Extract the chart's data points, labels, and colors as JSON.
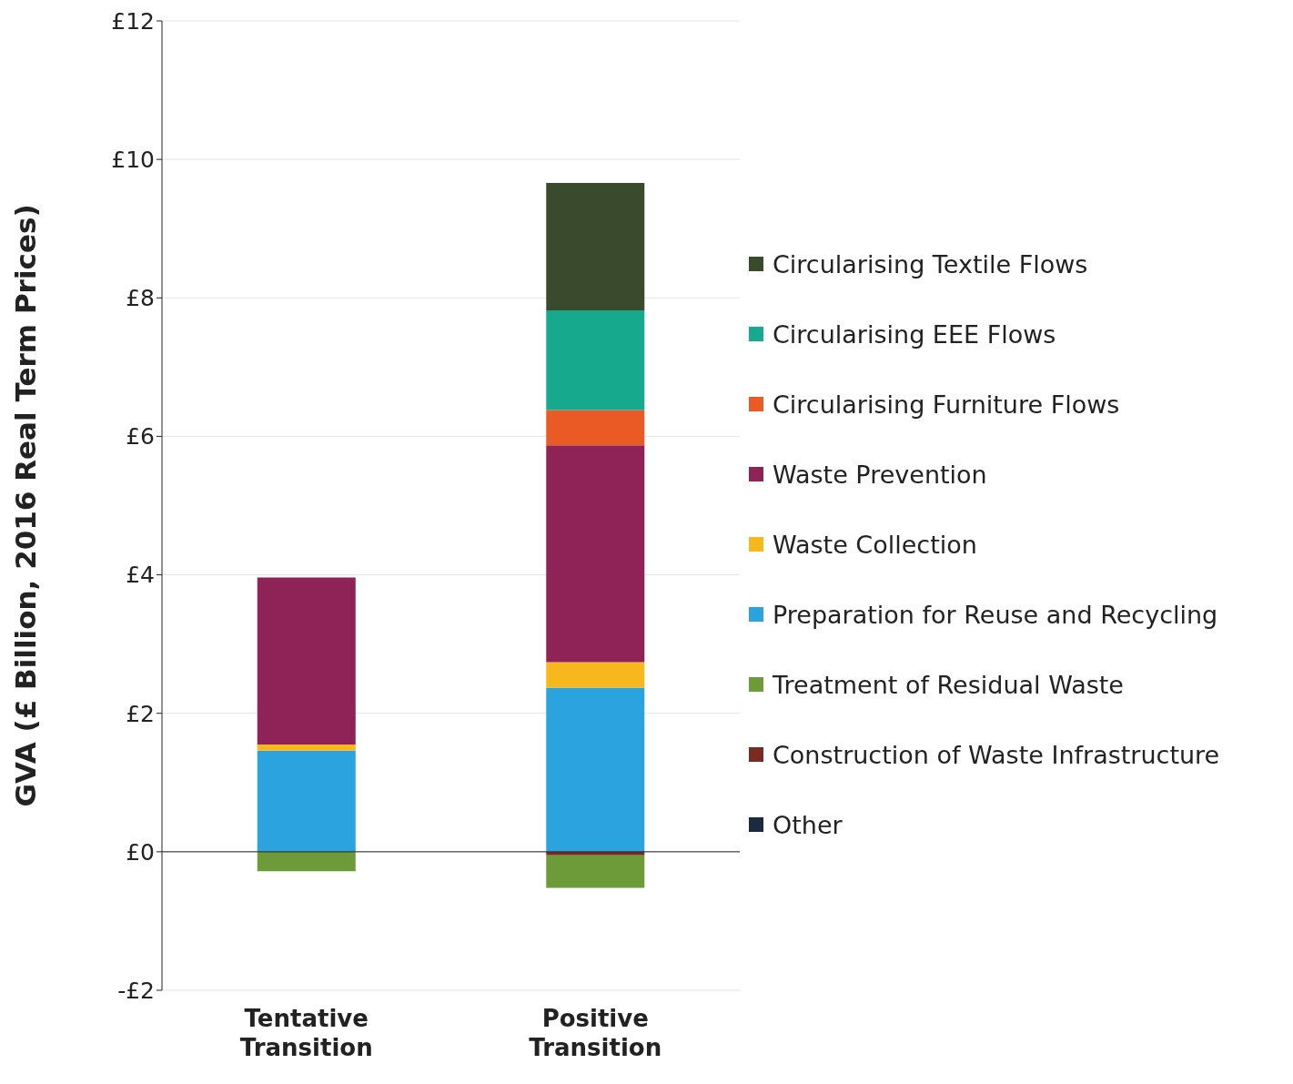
{
  "chart_data": {
    "type": "bar",
    "stacked": true,
    "ylabel": "GVA (£ Billion, 2016 Real Term Prices)",
    "categories": [
      "Tentative Transition",
      "Positive Transition"
    ],
    "series": [
      {
        "name": "Other",
        "color": "#1b2a3f",
        "values": [
          0,
          0
        ]
      },
      {
        "name": "Construction of Waste Infrastructure",
        "color": "#7b2a22",
        "values": [
          0,
          -0.05
        ]
      },
      {
        "name": "Treatment of Residual Waste",
        "color": "#6d9b3a",
        "values": [
          -0.28,
          -0.47
        ]
      },
      {
        "name": "Preparation for Reuse and Recycling",
        "color": "#2ba3de",
        "values": [
          1.46,
          2.37
        ]
      },
      {
        "name": "Waste Collection",
        "color": "#f6b81c",
        "values": [
          0.09,
          0.37
        ]
      },
      {
        "name": "Waste Prevention",
        "color": "#8f2257",
        "values": [
          2.41,
          3.13
        ]
      },
      {
        "name": "Circularising Furniture Flows",
        "color": "#ea5a24",
        "values": [
          0,
          0.51
        ]
      },
      {
        "name": "Circularising EEE Flows",
        "color": "#17a98e",
        "values": [
          0,
          1.44
        ]
      },
      {
        "name": "Circularising Textile Flows",
        "color": "#3a4a2c",
        "values": [
          0,
          1.84
        ]
      }
    ],
    "ylim": [
      -2,
      12
    ],
    "yticks": [
      {
        "value": -2,
        "label": "-£2"
      },
      {
        "value": 0,
        "label": "£0"
      },
      {
        "value": 2,
        "label": "£2"
      },
      {
        "value": 4,
        "label": "£4"
      },
      {
        "value": 6,
        "label": "£6"
      },
      {
        "value": 8,
        "label": "£8"
      },
      {
        "value": 10,
        "label": "£10"
      },
      {
        "value": 12,
        "label": "£12"
      }
    ],
    "grid": "y",
    "legend": "right"
  }
}
